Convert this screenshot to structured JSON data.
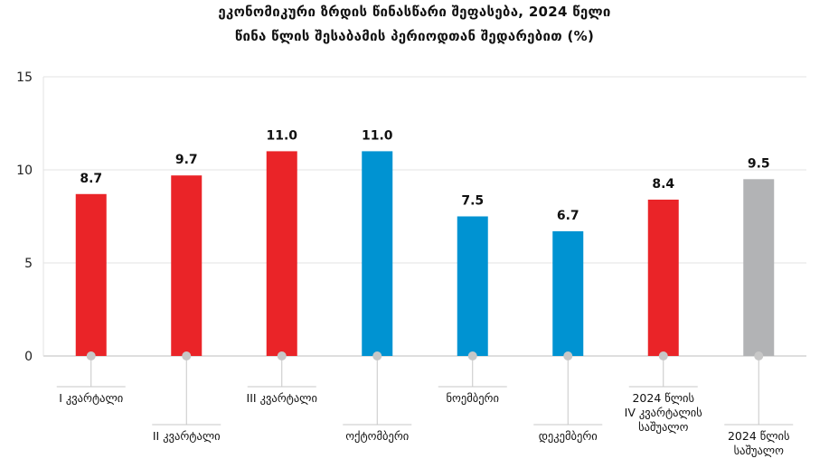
{
  "title_line1": "ეკონომიკური ზრდის წინასწარი შეფასება, 2024 წელი",
  "title_line2": "წინა წლის შესაბამის პერიოდთან შედარებით (%)",
  "colors": {
    "quarter": "#ea2428",
    "month": "#0093d2",
    "annual": "#b2b3b5",
    "grid": "#e3e3e3",
    "connector": "#c7c7c7",
    "dot": "#c7c7c7"
  },
  "chart_data": {
    "type": "bar",
    "title": "ეკონომიკური ზრდის წინასწარი შეფასება, 2024 წელი წინა წლის შესაბამის პერიოდთან შედარებით (%)",
    "ylim": [
      0,
      15
    ],
    "yticks": [
      0,
      5,
      10,
      15
    ],
    "grid": true,
    "legend": "none",
    "categories": [
      [
        "I კვარტალი"
      ],
      [
        "II კვარტალი"
      ],
      [
        "III კვარტალი"
      ],
      [
        "ოქტომბერი"
      ],
      [
        "ნოემბერი"
      ],
      [
        "დეკემბერი"
      ],
      [
        "2024 წლის",
        "IV კვარტალის",
        "საშუალო"
      ],
      [
        "2024 წლის",
        "საშუალო"
      ]
    ],
    "values": [
      8.7,
      9.7,
      11.0,
      11.0,
      7.5,
      6.7,
      8.4,
      9.5
    ],
    "value_labels": [
      "8.7",
      "9.7",
      "11.0",
      "11.0",
      "7.5",
      "6.7",
      "8.4",
      "9.5"
    ],
    "bar_kinds": [
      "quarter",
      "quarter",
      "quarter",
      "month",
      "month",
      "month",
      "quarter",
      "annual"
    ]
  }
}
